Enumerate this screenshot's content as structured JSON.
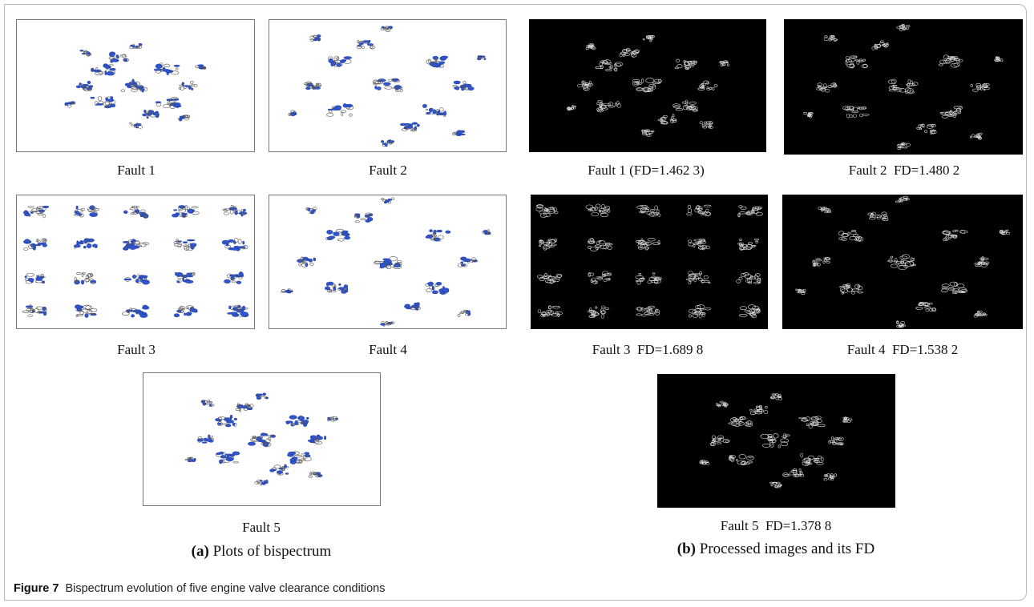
{
  "figure": {
    "label": "Figure 7",
    "caption": "Bispectrum evolution of five engine valve clearance conditions"
  },
  "panel_a": {
    "label": "(a)",
    "title": "Plots of bispectrum",
    "items": [
      "Fault 1",
      "Fault 2",
      "Fault 3",
      "Fault 4",
      "Fault 5"
    ]
  },
  "panel_b": {
    "label": "(b)",
    "title": "Processed images and its FD",
    "items": [
      "Fault 1 (FD=1.462 3)",
      "Fault 2  FD=1.480 2",
      "Fault 3  FD=1.689 8",
      "Fault 4  FD=1.538 2",
      "Fault 5  FD=1.378 8"
    ]
  }
}
